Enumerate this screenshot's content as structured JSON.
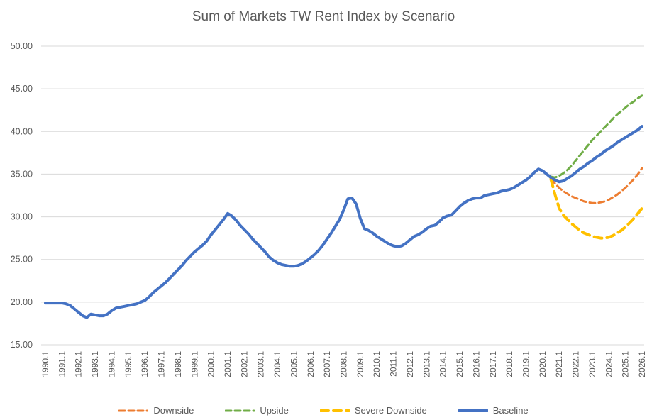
{
  "title": "Sum of Markets TW Rent Index by Scenario",
  "colors": {
    "background": "#FFFFFF",
    "gridline": "#D9D9D9",
    "axis_text": "#595959",
    "title_text": "#595959"
  },
  "chart_data": {
    "type": "line",
    "title": "Sum of Markets TW Rent Index by Scenario",
    "xlabel": "",
    "ylabel": "",
    "ylim": [
      15,
      50
    ],
    "grid": true,
    "legend_position": "bottom",
    "x_frequency": "quarterly",
    "x_tick_labels": [
      "1990.1",
      "1991.1",
      "1992.1",
      "1993.1",
      "1994.1",
      "1995.1",
      "1996.1",
      "1997.1",
      "1998.1",
      "1999.1",
      "2000.1",
      "2001.1",
      "2002.1",
      "2003.1",
      "2004.1",
      "2005.1",
      "2006.1",
      "2007.1",
      "2008.1",
      "2009.1",
      "2010.1",
      "2011.1",
      "2012.1",
      "2013.1",
      "2014.1",
      "2015.1",
      "2016.1",
      "2017.1",
      "2018.1",
      "2019.1",
      "2020.1",
      "2021.1",
      "2022.1",
      "2023.1",
      "2024.1",
      "2025.1",
      "2026.1"
    ],
    "quarters_per_tick": 4,
    "y_tick_labels": [
      "50.00",
      "45.00",
      "40.00",
      "35.00",
      "30.00",
      "25.00",
      "20.00",
      "15.00"
    ],
    "y_tick_values": [
      50,
      45,
      40,
      35,
      30,
      25,
      20,
      15
    ],
    "forecast_start_label": "2020.3",
    "series": [
      {
        "name": "Downside",
        "color": "#ED7D31",
        "style": "dashed",
        "line_width": 3,
        "dash": "8 5",
        "start_index": 122,
        "values": [
          34.4,
          33.9,
          33.4,
          33.0,
          32.7,
          32.4,
          32.2,
          32.0,
          31.8,
          31.7,
          31.6,
          31.6,
          31.7,
          31.8,
          32.0,
          32.3,
          32.6,
          33.0,
          33.4,
          33.9,
          34.4,
          35.0,
          35.7
        ]
      },
      {
        "name": "Upside",
        "color": "#70AD47",
        "style": "dashed",
        "line_width": 3,
        "dash": "8 5",
        "start_index": 122,
        "values": [
          34.7,
          34.6,
          34.8,
          35.1,
          35.5,
          36.0,
          36.6,
          37.2,
          37.8,
          38.4,
          39.0,
          39.5,
          40.0,
          40.5,
          41.0,
          41.5,
          42.0,
          42.4,
          42.8,
          43.2,
          43.5,
          43.9,
          44.2
        ]
      },
      {
        "name": "Severe Downside",
        "color": "#FFC000",
        "style": "dashed",
        "line_width": 4,
        "dash": "11 7",
        "start_index": 122,
        "values": [
          34.4,
          32.6,
          31.0,
          30.2,
          29.7,
          29.2,
          28.8,
          28.4,
          28.1,
          27.9,
          27.7,
          27.6,
          27.5,
          27.5,
          27.6,
          27.8,
          28.1,
          28.4,
          28.8,
          29.3,
          29.8,
          30.4,
          31.0
        ]
      },
      {
        "name": "Baseline",
        "color": "#4472C4",
        "style": "solid",
        "line_width": 4,
        "dash": null,
        "start_index": 0,
        "values": [
          19.9,
          19.9,
          19.9,
          19.9,
          19.9,
          19.8,
          19.6,
          19.2,
          18.8,
          18.4,
          18.2,
          18.6,
          18.5,
          18.4,
          18.4,
          18.6,
          19.0,
          19.3,
          19.4,
          19.5,
          19.6,
          19.7,
          19.8,
          20.0,
          20.2,
          20.6,
          21.1,
          21.5,
          21.9,
          22.3,
          22.8,
          23.3,
          23.8,
          24.3,
          24.9,
          25.4,
          25.9,
          26.3,
          26.7,
          27.2,
          27.9,
          28.5,
          29.1,
          29.7,
          30.4,
          30.1,
          29.6,
          29.0,
          28.5,
          28.0,
          27.4,
          26.9,
          26.4,
          25.9,
          25.3,
          24.9,
          24.6,
          24.4,
          24.3,
          24.2,
          24.2,
          24.3,
          24.5,
          24.8,
          25.2,
          25.6,
          26.1,
          26.7,
          27.4,
          28.1,
          28.9,
          29.7,
          30.8,
          32.1,
          32.2,
          31.5,
          29.8,
          28.6,
          28.4,
          28.1,
          27.7,
          27.4,
          27.1,
          26.8,
          26.6,
          26.5,
          26.6,
          26.9,
          27.3,
          27.7,
          27.9,
          28.2,
          28.6,
          28.9,
          29.0,
          29.4,
          29.9,
          30.1,
          30.2,
          30.7,
          31.2,
          31.6,
          31.9,
          32.1,
          32.2,
          32.2,
          32.5,
          32.6,
          32.7,
          32.8,
          33.0,
          33.1,
          33.2,
          33.4,
          33.7,
          34.0,
          34.3,
          34.7,
          35.2,
          35.6,
          35.4,
          35.0,
          34.6,
          34.3,
          34.1,
          34.2,
          34.5,
          34.8,
          35.2,
          35.6,
          35.9,
          36.3,
          36.6,
          37.0,
          37.3,
          37.7,
          38.0,
          38.3,
          38.7,
          39.0,
          39.3,
          39.6,
          39.9,
          40.2,
          40.6
        ]
      }
    ]
  }
}
